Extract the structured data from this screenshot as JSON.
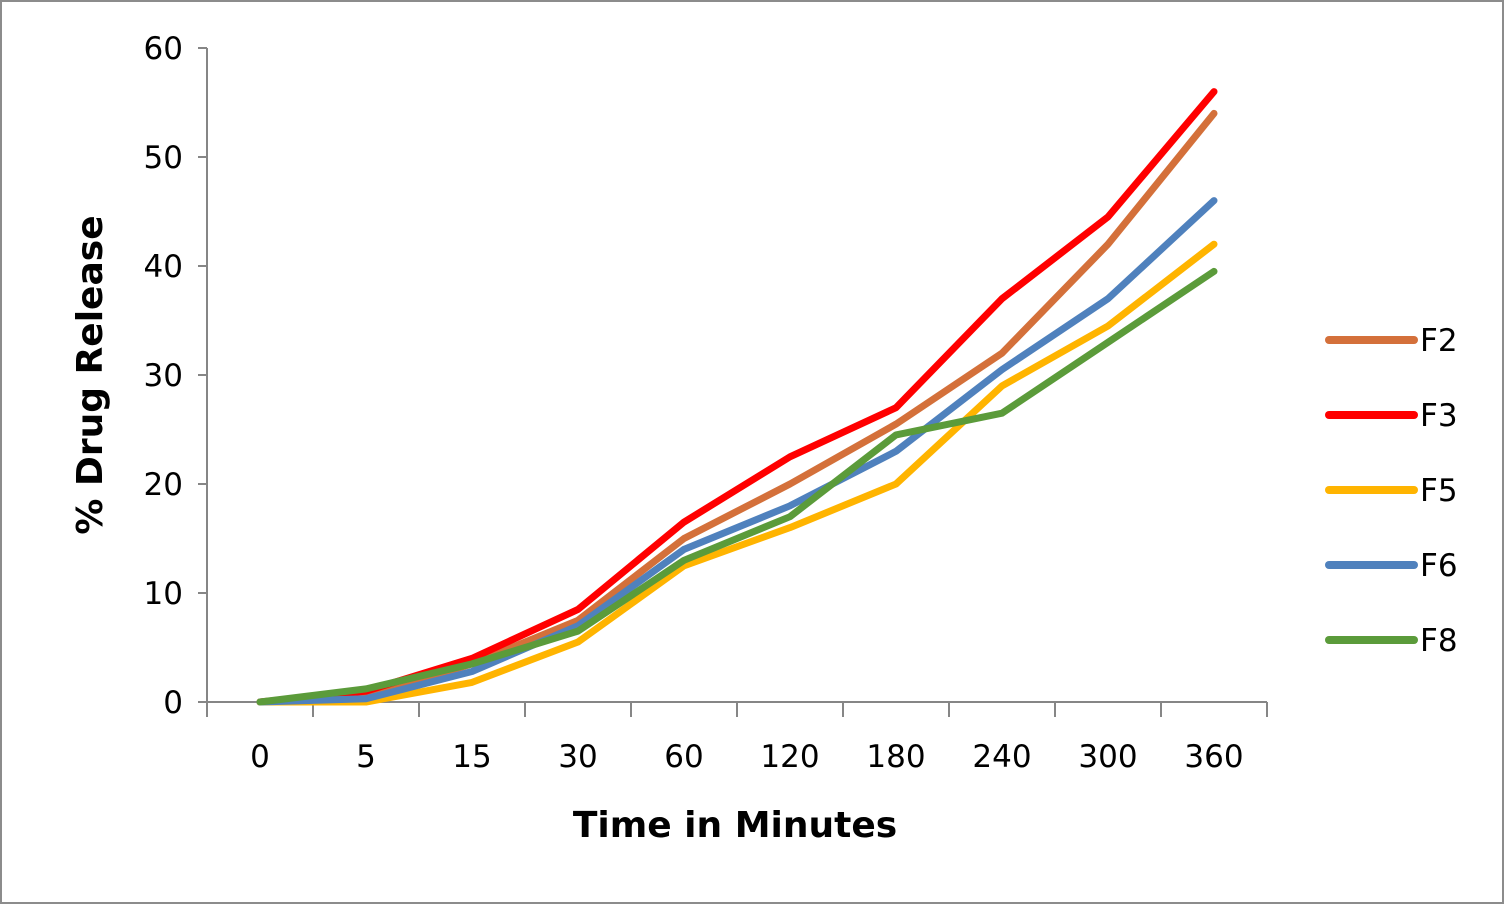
{
  "chart_data": {
    "type": "line",
    "title": "",
    "xlabel": "Time in Minutes",
    "ylabel": "% Drug Release",
    "categories": [
      "0",
      "5",
      "15",
      "30",
      "60",
      "120",
      "180",
      "240",
      "300",
      "360"
    ],
    "ylim": [
      0,
      60
    ],
    "yticks": [
      0,
      10,
      20,
      30,
      40,
      50,
      60
    ],
    "grid": false,
    "legend_position": "right",
    "series": [
      {
        "name": "F2",
        "color": "#d4703a",
        "values": [
          0,
          0.5,
          3.5,
          7.5,
          15.0,
          20.0,
          25.5,
          32.0,
          42.0,
          54.0
        ]
      },
      {
        "name": "F3",
        "color": "#ff0000",
        "values": [
          0,
          1.0,
          4.0,
          8.5,
          16.5,
          22.5,
          27.0,
          37.0,
          44.5,
          56.0
        ]
      },
      {
        "name": "F5",
        "color": "#ffb400",
        "values": [
          0,
          0,
          1.8,
          5.5,
          12.5,
          16.0,
          20.0,
          29.0,
          34.5,
          42.0
        ]
      },
      {
        "name": "F6",
        "color": "#4f81bd",
        "values": [
          0,
          0.3,
          2.8,
          7.0,
          14.0,
          18.0,
          23.0,
          30.5,
          37.0,
          46.0
        ]
      },
      {
        "name": "F8",
        "color": "#5b9b3a",
        "values": [
          0,
          1.2,
          3.5,
          6.5,
          13.0,
          17.0,
          24.5,
          26.5,
          33.0,
          39.5
        ]
      }
    ]
  }
}
